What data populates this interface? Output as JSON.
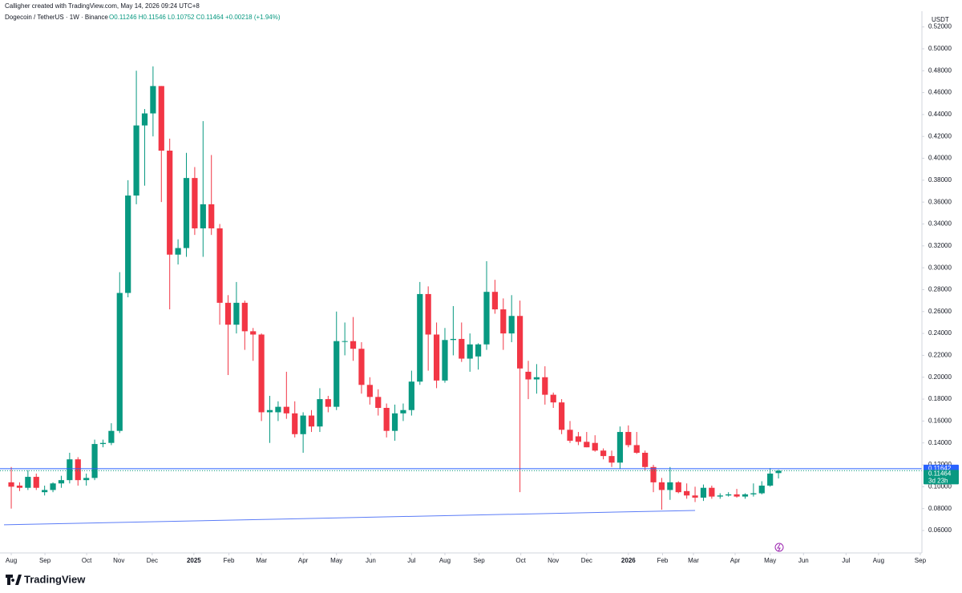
{
  "header": {
    "credit": "Calligher created with TradingView.com, May 14, 2026 09:24 UTC+8",
    "symbol": "Dogecoin / TetherUS · 1W · Binance",
    "ohlc": "O0.11246 H0.11546 L0.10752 C0.11464 +0.00218 (+1.94%)"
  },
  "footer": {
    "logo": "TradingView"
  },
  "chart_data": {
    "type": "candlestick",
    "currency": "USDT",
    "grid": false,
    "up_color": "#089981",
    "down_color": "#f23645",
    "categories": [
      null,
      null,
      null,
      null,
      null,
      null,
      null,
      null,
      null,
      null,
      null,
      null,
      null,
      null,
      null,
      null,
      null,
      null,
      null,
      null,
      null,
      null,
      null,
      null,
      null,
      null,
      null,
      null,
      null,
      null,
      null,
      null,
      null,
      null,
      null,
      null,
      null,
      null,
      null,
      null,
      null,
      null,
      null,
      null,
      null,
      null,
      null,
      null,
      null,
      null,
      null,
      null,
      null,
      null,
      null,
      null,
      null,
      null,
      null,
      null,
      null,
      null,
      null,
      null,
      null,
      null,
      null,
      null,
      null,
      null,
      null,
      null,
      null,
      null,
      null,
      null,
      null,
      null,
      null,
      null,
      null,
      null,
      null,
      null,
      null,
      null,
      null,
      null,
      null,
      null,
      null,
      null,
      null
    ],
    "open": [
      0.104,
      0.101,
      0.099,
      0.109,
      0.095,
      0.097,
      0.103,
      0.106,
      0.125,
      0.106,
      0.108,
      0.139,
      0.14,
      0.151,
      0.277,
      0.366,
      0.43,
      0.441,
      0.466,
      0.407,
      0.312,
      0.318,
      0.382,
      0.336,
      0.358,
      0.336,
      0.268,
      0.248,
      0.268,
      0.242,
      0.239,
      0.168,
      0.168,
      0.173,
      0.167,
      0.148,
      0.165,
      0.155,
      0.18,
      0.173,
      0.233,
      0.233,
      0.226,
      0.193,
      0.182,
      0.172,
      0.151,
      0.167,
      0.17,
      0.196,
      0.276,
      0.239,
      0.197,
      0.234,
      0.235,
      0.217,
      0.219,
      0.23,
      0.278,
      0.262,
      0.24,
      0.256,
      0.205,
      0.198,
      0.2,
      0.184,
      0.177,
      0.152,
      0.146,
      0.141,
      0.14,
      0.133,
      0.128,
      0.122,
      0.15,
      0.138,
      0.131,
      0.118,
      0.104,
      0.097,
      0.104,
      0.096,
      0.092,
      0.09,
      0.099,
      0.091,
      0.092,
      0.093,
      0.091,
      0.093,
      0.094,
      0.101,
      0.11246
    ],
    "high": [
      0.118,
      0.104,
      0.115,
      0.112,
      0.101,
      0.104,
      0.11,
      0.131,
      0.127,
      0.112,
      0.143,
      0.143,
      0.158,
      0.296,
      0.38,
      0.48,
      0.445,
      0.484,
      0.466,
      0.418,
      0.326,
      0.405,
      0.392,
      0.434,
      0.403,
      0.34,
      0.275,
      0.287,
      0.27,
      0.245,
      0.24,
      0.183,
      0.178,
      0.205,
      0.178,
      0.168,
      0.17,
      0.19,
      0.183,
      0.26,
      0.25,
      0.255,
      0.232,
      0.2,
      0.189,
      0.176,
      0.175,
      0.176,
      0.206,
      0.287,
      0.283,
      0.25,
      0.245,
      0.265,
      0.25,
      0.24,
      0.231,
      0.306,
      0.289,
      0.272,
      0.275,
      0.27,
      0.215,
      0.212,
      0.21,
      0.186,
      0.18,
      0.16,
      0.15,
      0.15,
      0.147,
      0.135,
      0.133,
      0.155,
      0.156,
      0.15,
      0.133,
      0.12,
      0.108,
      0.118,
      0.105,
      0.103,
      0.1,
      0.102,
      0.101,
      0.094,
      0.095,
      0.098,
      0.094,
      0.103,
      0.105,
      0.117,
      0.11546
    ],
    "low": [
      0.08,
      0.096,
      0.097,
      0.097,
      0.092,
      0.095,
      0.099,
      0.103,
      0.101,
      0.101,
      0.106,
      0.136,
      0.138,
      0.149,
      0.273,
      0.358,
      0.375,
      0.42,
      0.36,
      0.262,
      0.303,
      0.31,
      0.33,
      0.31,
      0.33,
      0.248,
      0.202,
      0.24,
      0.225,
      0.215,
      0.16,
      0.14,
      0.16,
      0.162,
      0.145,
      0.131,
      0.15,
      0.15,
      0.168,
      0.17,
      0.22,
      0.215,
      0.185,
      0.175,
      0.165,
      0.145,
      0.142,
      0.16,
      0.165,
      0.193,
      0.206,
      0.19,
      0.195,
      0.22,
      0.214,
      0.205,
      0.207,
      0.225,
      0.258,
      0.225,
      0.232,
      0.095,
      0.18,
      0.185,
      0.175,
      0.172,
      0.148,
      0.14,
      0.138,
      0.136,
      0.132,
      0.125,
      0.118,
      0.116,
      0.136,
      0.13,
      0.115,
      0.095,
      0.079,
      0.088,
      0.094,
      0.089,
      0.086,
      0.087,
      0.089,
      0.089,
      0.091,
      0.09,
      0.089,
      0.091,
      0.093,
      0.1,
      0.10752
    ],
    "close": [
      0.1,
      0.099,
      0.109,
      0.099,
      0.097,
      0.103,
      0.106,
      0.125,
      0.106,
      0.108,
      0.139,
      0.14,
      0.151,
      0.277,
      0.366,
      0.43,
      0.441,
      0.466,
      0.407,
      0.312,
      0.318,
      0.382,
      0.336,
      0.358,
      0.336,
      0.268,
      0.248,
      0.268,
      0.242,
      0.239,
      0.168,
      0.17,
      0.173,
      0.167,
      0.148,
      0.165,
      0.155,
      0.18,
      0.173,
      0.233,
      0.233,
      0.226,
      0.193,
      0.182,
      0.172,
      0.151,
      0.167,
      0.17,
      0.196,
      0.276,
      0.239,
      0.197,
      0.234,
      0.235,
      0.217,
      0.23,
      0.23,
      0.278,
      0.262,
      0.24,
      0.256,
      0.208,
      0.198,
      0.2,
      0.184,
      0.177,
      0.152,
      0.142,
      0.141,
      0.136,
      0.133,
      0.128,
      0.122,
      0.15,
      0.138,
      0.131,
      0.118,
      0.104,
      0.097,
      0.104,
      0.095,
      0.092,
      0.09,
      0.099,
      0.091,
      0.092,
      0.093,
      0.091,
      0.093,
      0.094,
      0.101,
      0.112,
      0.11464
    ],
    "xlim": [
      -1.35,
      109.2
    ],
    "xticks": [
      {
        "value": 0.0,
        "label": "Aug"
      },
      {
        "value": 4.04,
        "label": "Sep"
      },
      {
        "value": 9.04,
        "label": "Oct"
      },
      {
        "value": 12.9,
        "label": "Nov"
      },
      {
        "value": 16.9,
        "label": "Dec"
      },
      {
        "value": 21.9,
        "label": "2025"
      },
      {
        "value": 26.1,
        "label": "Feb"
      },
      {
        "value": 30.0,
        "label": "Mar"
      },
      {
        "value": 35.0,
        "label": "Apr"
      },
      {
        "value": 39.0,
        "label": "May"
      },
      {
        "value": 43.1,
        "label": "Jun"
      },
      {
        "value": 48.0,
        "label": "Jul"
      },
      {
        "value": 52.0,
        "label": "Aug"
      },
      {
        "value": 56.1,
        "label": "Sep"
      },
      {
        "value": 61.1,
        "label": "Oct"
      },
      {
        "value": 65.0,
        "label": "Nov"
      },
      {
        "value": 69.0,
        "label": "Dec"
      },
      {
        "value": 74.0,
        "label": "2026"
      },
      {
        "value": 78.1,
        "label": "Feb"
      },
      {
        "value": 81.8,
        "label": "Mar"
      },
      {
        "value": 86.8,
        "label": "Apr"
      },
      {
        "value": 91.0,
        "label": "May"
      },
      {
        "value": 95.0,
        "label": "Jun"
      },
      {
        "value": 100.1,
        "label": "Jul"
      },
      {
        "value": 104.0,
        "label": "Aug"
      },
      {
        "value": 109.0,
        "label": "Sep"
      }
    ],
    "ylim": [
      0.0395,
      0.5285
    ],
    "yticks": [
      {
        "value": 0.06,
        "label": "0.06000"
      },
      {
        "value": 0.08,
        "label": "0.08000"
      },
      {
        "value": 0.1,
        "label": "0.10000"
      },
      {
        "value": 0.12,
        "label": "0.12000"
      },
      {
        "value": 0.14,
        "label": "0.14000"
      },
      {
        "value": 0.16,
        "label": "0.16000"
      },
      {
        "value": 0.18,
        "label": "0.18000"
      },
      {
        "value": 0.2,
        "label": "0.20000"
      },
      {
        "value": 0.22,
        "label": "0.22000"
      },
      {
        "value": 0.24,
        "label": "0.24000"
      },
      {
        "value": 0.26,
        "label": "0.26000"
      },
      {
        "value": 0.28,
        "label": "0.28000"
      },
      {
        "value": 0.3,
        "label": "0.30000"
      },
      {
        "value": 0.32,
        "label": "0.32000"
      },
      {
        "value": 0.34,
        "label": "0.34000"
      },
      {
        "value": 0.36,
        "label": "0.36000"
      },
      {
        "value": 0.38,
        "label": "0.38000"
      },
      {
        "value": 0.4,
        "label": "0.40000"
      },
      {
        "value": 0.42,
        "label": "0.42000"
      },
      {
        "value": 0.44,
        "label": "0.44000"
      },
      {
        "value": 0.46,
        "label": "0.46000"
      },
      {
        "value": 0.48,
        "label": "0.48000"
      },
      {
        "value": 0.5,
        "label": "0.50000"
      },
      {
        "value": 0.52,
        "label": "0.52000"
      }
    ],
    "trend_line": {
      "x": [
        -0.87,
        82.0
      ],
      "values": [
        0.0652,
        0.0783
      ],
      "color": "#5b7cf7"
    },
    "price_lines": [
      {
        "value": 0.11642,
        "label": "0.11642",
        "color": "#2962ff",
        "style": "solid"
      },
      {
        "value": 0.11464,
        "label": "0.11464",
        "sublabel": "3d 23h",
        "color": "#089981",
        "style": "dotted"
      }
    ]
  }
}
